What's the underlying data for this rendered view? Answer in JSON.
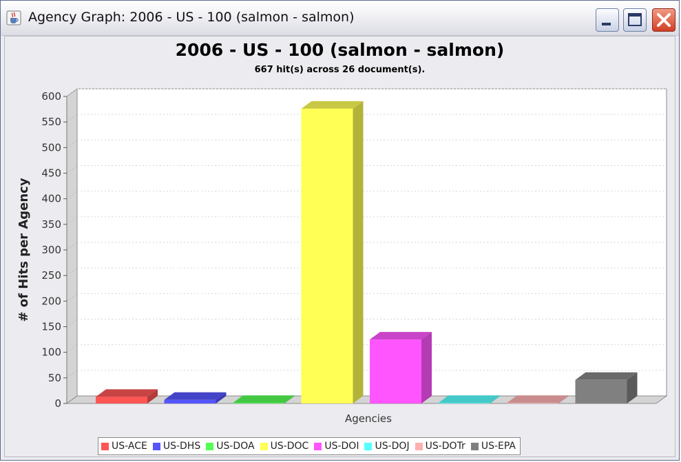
{
  "window": {
    "title": "Agency Graph: 2006 - US - 100 (salmon - salmon)"
  },
  "icons": {
    "app": "java-cup-icon",
    "minimize": "minimize-icon",
    "maximize": "maximize-icon",
    "close": "close-icon"
  },
  "chart_data": {
    "type": "bar",
    "title": "2006 - US - 100 (salmon - salmon)",
    "subtitle": "667 hit(s) across 26 document(s).",
    "xlabel": "Agencies",
    "ylabel": "# of Hits per Agency",
    "ylim": [
      0,
      600
    ],
    "yticks": [
      0,
      50,
      100,
      150,
      200,
      250,
      300,
      350,
      400,
      450,
      500,
      550,
      600
    ],
    "categories": [
      "US-ACE",
      "US-DHS",
      "US-DOA",
      "US-DOC",
      "US-DOI",
      "US-DOJ",
      "US-DOTr",
      "US-EPA"
    ],
    "values": [
      13,
      7,
      1,
      576,
      125,
      1,
      1,
      46
    ],
    "colors": [
      "#ff5555",
      "#5555ff",
      "#55ff55",
      "#ffff55",
      "#ff55ff",
      "#55ffff",
      "#ffafaf",
      "#808080"
    ],
    "side_colors": [
      "#b33b3b",
      "#3b3bb3",
      "#3bb33b",
      "#b3b33b",
      "#b33bb3",
      "#3bb3b3",
      "#b37a7a",
      "#5a5a5a"
    ],
    "top_colors": [
      "#c84444",
      "#4444c8",
      "#44c844",
      "#c8c844",
      "#c844c8",
      "#44c8c8",
      "#c88c8c",
      "#6a6a6a"
    ],
    "grid": true,
    "legend_position": "bottom"
  }
}
